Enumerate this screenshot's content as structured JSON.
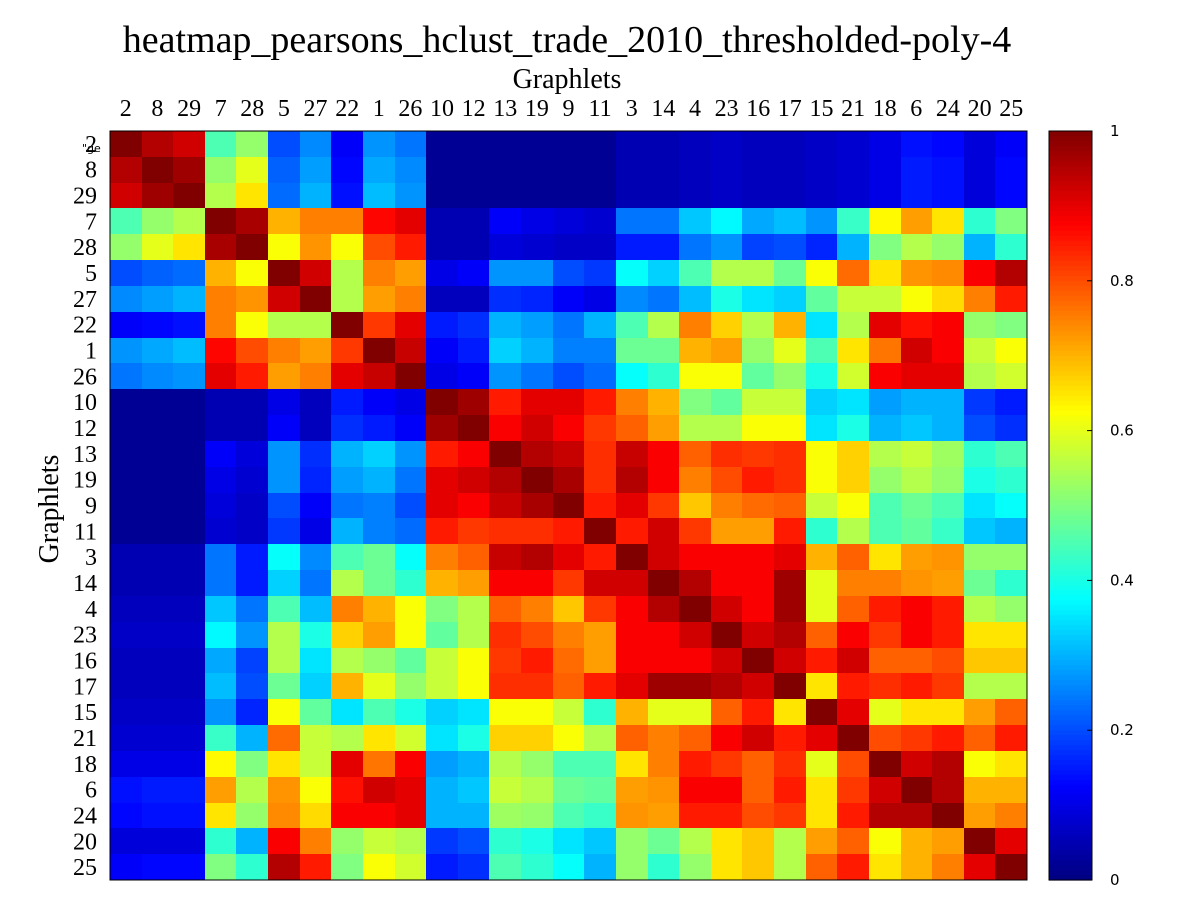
{
  "chart_data": {
    "type": "heatmap",
    "title": "heatmap_pearsons_hclust_trade_2010_thresholded-poly-4",
    "xlabel": "Graphlets",
    "ylabel": "Graphlets",
    "corner_mark": "\"ge",
    "labels": [
      "2",
      "8",
      "29",
      "7",
      "28",
      "5",
      "27",
      "22",
      "1",
      "26",
      "10",
      "12",
      "13",
      "19",
      "9",
      "11",
      "3",
      "14",
      "4",
      "23",
      "16",
      "17",
      "15",
      "21",
      "18",
      "6",
      "24",
      "20",
      "25"
    ],
    "colorbar": {
      "min": 0,
      "max": 1,
      "ticks": [
        "0",
        "0.2",
        "0.4",
        "0.6",
        "0.8",
        "1"
      ],
      "colormap": "jet"
    },
    "matrix": [
      [
        1.0,
        0.95,
        0.92,
        0.45,
        0.52,
        0.2,
        0.26,
        0.12,
        0.27,
        0.24,
        0.02,
        0.02,
        0.02,
        0.02,
        0.02,
        0.02,
        0.05,
        0.05,
        0.06,
        0.07,
        0.06,
        0.06,
        0.07,
        0.08,
        0.1,
        0.14,
        0.13,
        0.09,
        0.12
      ],
      [
        0.95,
        1.0,
        0.97,
        0.52,
        0.6,
        0.22,
        0.28,
        0.13,
        0.29,
        0.26,
        0.02,
        0.02,
        0.02,
        0.02,
        0.02,
        0.02,
        0.05,
        0.05,
        0.06,
        0.07,
        0.06,
        0.06,
        0.07,
        0.08,
        0.1,
        0.15,
        0.14,
        0.09,
        0.13
      ],
      [
        0.92,
        0.97,
        1.0,
        0.55,
        0.65,
        0.23,
        0.3,
        0.14,
        0.31,
        0.27,
        0.02,
        0.02,
        0.02,
        0.02,
        0.02,
        0.02,
        0.05,
        0.05,
        0.06,
        0.07,
        0.06,
        0.06,
        0.07,
        0.08,
        0.1,
        0.15,
        0.14,
        0.09,
        0.13
      ],
      [
        0.45,
        0.52,
        0.55,
        1.0,
        0.96,
        0.7,
        0.75,
        0.75,
        0.87,
        0.9,
        0.05,
        0.05,
        0.12,
        0.1,
        0.09,
        0.08,
        0.24,
        0.24,
        0.32,
        0.37,
        0.29,
        0.31,
        0.27,
        0.43,
        0.63,
        0.72,
        0.65,
        0.42,
        0.5
      ],
      [
        0.52,
        0.6,
        0.65,
        0.96,
        1.0,
        0.62,
        0.73,
        0.62,
        0.8,
        0.85,
        0.05,
        0.05,
        0.09,
        0.08,
        0.07,
        0.07,
        0.15,
        0.15,
        0.24,
        0.27,
        0.19,
        0.2,
        0.16,
        0.3,
        0.5,
        0.55,
        0.52,
        0.3,
        0.42
      ],
      [
        0.2,
        0.22,
        0.23,
        0.7,
        0.62,
        1.0,
        0.92,
        0.55,
        0.75,
        0.72,
        0.1,
        0.12,
        0.27,
        0.27,
        0.2,
        0.18,
        0.38,
        0.33,
        0.45,
        0.55,
        0.55,
        0.48,
        0.62,
        0.77,
        0.65,
        0.73,
        0.74,
        0.88,
        0.95
      ],
      [
        0.26,
        0.28,
        0.3,
        0.75,
        0.73,
        0.92,
        1.0,
        0.55,
        0.72,
        0.75,
        0.06,
        0.06,
        0.17,
        0.16,
        0.12,
        0.1,
        0.26,
        0.24,
        0.31,
        0.4,
        0.35,
        0.33,
        0.47,
        0.57,
        0.57,
        0.62,
        0.66,
        0.75,
        0.85
      ],
      [
        0.12,
        0.13,
        0.14,
        0.75,
        0.62,
        0.55,
        0.55,
        1.0,
        0.82,
        0.9,
        0.15,
        0.17,
        0.3,
        0.28,
        0.24,
        0.3,
        0.45,
        0.55,
        0.75,
        0.67,
        0.55,
        0.7,
        0.35,
        0.55,
        0.9,
        0.86,
        0.88,
        0.52,
        0.5
      ],
      [
        0.27,
        0.29,
        0.31,
        0.87,
        0.8,
        0.75,
        0.72,
        0.82,
        1.0,
        0.93,
        0.12,
        0.15,
        0.33,
        0.3,
        0.25,
        0.25,
        0.48,
        0.48,
        0.7,
        0.72,
        0.52,
        0.6,
        0.45,
        0.65,
        0.76,
        0.92,
        0.88,
        0.57,
        0.62
      ],
      [
        0.24,
        0.26,
        0.27,
        0.9,
        0.85,
        0.72,
        0.75,
        0.9,
        0.93,
        1.0,
        0.1,
        0.12,
        0.27,
        0.24,
        0.2,
        0.23,
        0.38,
        0.42,
        0.62,
        0.62,
        0.47,
        0.52,
        0.4,
        0.58,
        0.88,
        0.9,
        0.9,
        0.55,
        0.58
      ],
      [
        0.02,
        0.02,
        0.02,
        0.05,
        0.05,
        0.1,
        0.06,
        0.15,
        0.12,
        0.1,
        1.0,
        0.97,
        0.85,
        0.9,
        0.9,
        0.85,
        0.75,
        0.7,
        0.5,
        0.47,
        0.57,
        0.57,
        0.33,
        0.35,
        0.28,
        0.3,
        0.3,
        0.18,
        0.15
      ],
      [
        0.02,
        0.02,
        0.02,
        0.05,
        0.05,
        0.12,
        0.06,
        0.17,
        0.15,
        0.12,
        0.97,
        1.0,
        0.88,
        0.92,
        0.88,
        0.82,
        0.78,
        0.72,
        0.55,
        0.55,
        0.62,
        0.62,
        0.35,
        0.4,
        0.3,
        0.32,
        0.3,
        0.2,
        0.17
      ],
      [
        0.02,
        0.02,
        0.02,
        0.12,
        0.09,
        0.27,
        0.17,
        0.3,
        0.33,
        0.27,
        0.85,
        0.88,
        1.0,
        0.95,
        0.93,
        0.83,
        0.93,
        0.88,
        0.78,
        0.83,
        0.82,
        0.83,
        0.62,
        0.67,
        0.55,
        0.57,
        0.53,
        0.42,
        0.45
      ],
      [
        0.02,
        0.02,
        0.02,
        0.1,
        0.08,
        0.27,
        0.16,
        0.28,
        0.3,
        0.24,
        0.9,
        0.92,
        0.95,
        1.0,
        0.96,
        0.83,
        0.95,
        0.88,
        0.75,
        0.8,
        0.85,
        0.83,
        0.62,
        0.67,
        0.52,
        0.55,
        0.52,
        0.4,
        0.42
      ],
      [
        0.02,
        0.02,
        0.02,
        0.09,
        0.07,
        0.2,
        0.12,
        0.24,
        0.25,
        0.2,
        0.9,
        0.88,
        0.93,
        0.96,
        1.0,
        0.85,
        0.9,
        0.82,
        0.68,
        0.75,
        0.77,
        0.78,
        0.57,
        0.62,
        0.45,
        0.48,
        0.45,
        0.35,
        0.38
      ],
      [
        0.02,
        0.02,
        0.02,
        0.08,
        0.07,
        0.18,
        0.1,
        0.3,
        0.25,
        0.23,
        0.85,
        0.82,
        0.83,
        0.83,
        0.85,
        1.0,
        0.85,
        0.92,
        0.82,
        0.72,
        0.72,
        0.85,
        0.42,
        0.55,
        0.45,
        0.47,
        0.43,
        0.32,
        0.3
      ],
      [
        0.05,
        0.05,
        0.05,
        0.24,
        0.15,
        0.38,
        0.26,
        0.45,
        0.48,
        0.38,
        0.75,
        0.78,
        0.93,
        0.95,
        0.9,
        0.85,
        1.0,
        0.92,
        0.88,
        0.88,
        0.88,
        0.9,
        0.7,
        0.78,
        0.65,
        0.72,
        0.73,
        0.52,
        0.52
      ],
      [
        0.05,
        0.05,
        0.05,
        0.24,
        0.15,
        0.33,
        0.24,
        0.55,
        0.48,
        0.42,
        0.7,
        0.72,
        0.88,
        0.88,
        0.82,
        0.92,
        0.92,
        1.0,
        0.95,
        0.88,
        0.88,
        0.97,
        0.6,
        0.75,
        0.75,
        0.73,
        0.72,
        0.48,
        0.42
      ],
      [
        0.06,
        0.06,
        0.06,
        0.32,
        0.24,
        0.45,
        0.31,
        0.75,
        0.7,
        0.62,
        0.5,
        0.55,
        0.78,
        0.75,
        0.68,
        0.82,
        0.88,
        0.95,
        1.0,
        0.92,
        0.88,
        0.97,
        0.6,
        0.78,
        0.85,
        0.88,
        0.85,
        0.55,
        0.52
      ],
      [
        0.07,
        0.07,
        0.07,
        0.37,
        0.27,
        0.55,
        0.4,
        0.67,
        0.72,
        0.62,
        0.47,
        0.55,
        0.83,
        0.8,
        0.75,
        0.72,
        0.88,
        0.88,
        0.92,
        1.0,
        0.92,
        0.95,
        0.78,
        0.88,
        0.82,
        0.88,
        0.85,
        0.65,
        0.65
      ],
      [
        0.06,
        0.06,
        0.06,
        0.29,
        0.19,
        0.55,
        0.35,
        0.55,
        0.52,
        0.47,
        0.57,
        0.62,
        0.82,
        0.85,
        0.77,
        0.72,
        0.88,
        0.88,
        0.88,
        0.92,
        1.0,
        0.92,
        0.85,
        0.92,
        0.78,
        0.78,
        0.8,
        0.68,
        0.68
      ],
      [
        0.06,
        0.06,
        0.06,
        0.31,
        0.2,
        0.48,
        0.33,
        0.7,
        0.6,
        0.52,
        0.57,
        0.62,
        0.83,
        0.83,
        0.78,
        0.85,
        0.9,
        0.97,
        0.97,
        0.95,
        0.92,
        1.0,
        0.65,
        0.85,
        0.83,
        0.85,
        0.82,
        0.55,
        0.55
      ],
      [
        0.07,
        0.07,
        0.07,
        0.27,
        0.16,
        0.62,
        0.47,
        0.35,
        0.45,
        0.4,
        0.33,
        0.35,
        0.62,
        0.62,
        0.57,
        0.42,
        0.7,
        0.6,
        0.6,
        0.78,
        0.85,
        0.65,
        1.0,
        0.9,
        0.6,
        0.65,
        0.65,
        0.72,
        0.78
      ],
      [
        0.08,
        0.08,
        0.08,
        0.43,
        0.3,
        0.77,
        0.57,
        0.55,
        0.65,
        0.58,
        0.35,
        0.4,
        0.67,
        0.67,
        0.62,
        0.55,
        0.78,
        0.75,
        0.78,
        0.88,
        0.92,
        0.85,
        0.9,
        1.0,
        0.8,
        0.82,
        0.85,
        0.78,
        0.85
      ],
      [
        0.1,
        0.1,
        0.1,
        0.63,
        0.5,
        0.65,
        0.57,
        0.9,
        0.76,
        0.88,
        0.28,
        0.3,
        0.55,
        0.52,
        0.45,
        0.45,
        0.65,
        0.75,
        0.85,
        0.82,
        0.78,
        0.83,
        0.6,
        0.8,
        1.0,
        0.92,
        0.95,
        0.62,
        0.65
      ],
      [
        0.14,
        0.15,
        0.15,
        0.72,
        0.55,
        0.73,
        0.62,
        0.86,
        0.92,
        0.9,
        0.3,
        0.32,
        0.57,
        0.55,
        0.48,
        0.47,
        0.72,
        0.73,
        0.88,
        0.88,
        0.78,
        0.85,
        0.65,
        0.82,
        0.92,
        1.0,
        0.95,
        0.7,
        0.7
      ],
      [
        0.13,
        0.14,
        0.14,
        0.65,
        0.52,
        0.74,
        0.66,
        0.88,
        0.88,
        0.9,
        0.3,
        0.3,
        0.53,
        0.52,
        0.45,
        0.43,
        0.73,
        0.72,
        0.85,
        0.85,
        0.8,
        0.82,
        0.65,
        0.85,
        0.95,
        0.95,
        1.0,
        0.72,
        0.75
      ],
      [
        0.09,
        0.09,
        0.09,
        0.42,
        0.3,
        0.88,
        0.75,
        0.52,
        0.57,
        0.55,
        0.18,
        0.2,
        0.42,
        0.4,
        0.35,
        0.32,
        0.52,
        0.48,
        0.55,
        0.65,
        0.68,
        0.55,
        0.72,
        0.78,
        0.62,
        0.7,
        0.72,
        1.0,
        0.9
      ],
      [
        0.12,
        0.13,
        0.13,
        0.5,
        0.42,
        0.95,
        0.85,
        0.5,
        0.62,
        0.58,
        0.15,
        0.17,
        0.45,
        0.42,
        0.38,
        0.3,
        0.52,
        0.42,
        0.52,
        0.65,
        0.68,
        0.55,
        0.78,
        0.85,
        0.65,
        0.7,
        0.75,
        0.9,
        1.0
      ]
    ]
  }
}
